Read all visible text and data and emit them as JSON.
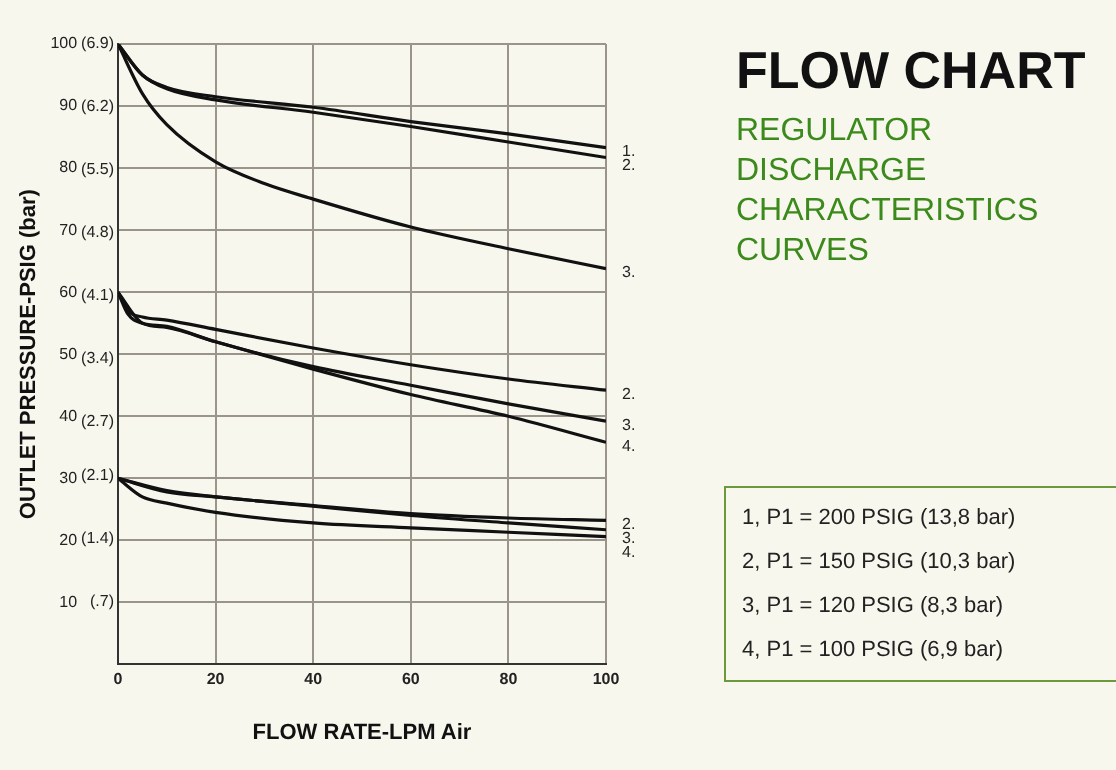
{
  "chart_data": {
    "type": "line",
    "title": "FLOW CHART",
    "subtitle": "REGULATOR DISCHARGE CHARACTERISTICS CURVES",
    "xlabel": "FLOW RATE-LPM Air",
    "ylabel": "OUTLET PRESSURE-PSIG (bar)",
    "annotations": [
      "1, P1 = 200 PSIG (13,8 bar)",
      "2, P1 = 150 PSIG (10,3 bar)",
      "3, P1 = 120 PSIG (8,3 bar)",
      "4, P1 = 100 PSIG (6,9 bar)"
    ],
    "xlim": [
      0,
      100
    ],
    "xticks": [
      0,
      20,
      40,
      60,
      80,
      100
    ],
    "ylim": [
      0,
      100
    ],
    "yticks": [
      10,
      20,
      30,
      40,
      50,
      60,
      70,
      80,
      90,
      100
    ],
    "y2lim": [
      0,
      6.9
    ],
    "y2ticks": [
      {
        "value": 0.7,
        "label": "(.7)"
      },
      {
        "value": 1.4,
        "label": "(1.4)"
      },
      {
        "value": 2.1,
        "label": "(2.1)"
      },
      {
        "value": 2.7,
        "label": "(2.7)"
      },
      {
        "value": 3.4,
        "label": "(3.4)"
      },
      {
        "value": 4.1,
        "label": "(4.1)"
      },
      {
        "value": 4.8,
        "label": "(4.8)"
      },
      {
        "value": 5.5,
        "label": "(5.5)"
      },
      {
        "value": 6.2,
        "label": "(6.2)"
      },
      {
        "value": 6.9,
        "label": "(6.9)"
      }
    ],
    "grid": true,
    "legend": false,
    "marker": "none",
    "line_style": "solid",
    "series": [
      {
        "name": "1.",
        "color": "#111111",
        "x": [
          0,
          5,
          10,
          20,
          40,
          60,
          80,
          100
        ],
        "values": [
          100,
          95,
          93,
          91.5,
          89.8,
          87.5,
          85.5,
          83.3
        ]
      },
      {
        "name": "2.",
        "color": "#111111",
        "x": [
          0,
          5,
          10,
          20,
          40,
          60,
          80,
          100
        ],
        "values": [
          100,
          95,
          92.8,
          91,
          89,
          86.7,
          84.2,
          81.7
        ]
      },
      {
        "name": "3.",
        "color": "#111111",
        "x": [
          0,
          5,
          10,
          20,
          30,
          40,
          60,
          80,
          100
        ],
        "values": [
          100,
          92,
          87,
          81,
          77.5,
          75,
          70.5,
          67,
          63.8
        ]
      },
      {
        "name": "2.",
        "color": "#111111",
        "x": [
          0,
          2,
          5,
          10,
          20,
          40,
          60,
          80,
          100
        ],
        "values": [
          60,
          57,
          56,
          55.5,
          54,
          51,
          48.3,
          46,
          44.2
        ]
      },
      {
        "name": "3.",
        "color": "#111111",
        "x": [
          0,
          2,
          5,
          10,
          20,
          40,
          60,
          80,
          100
        ],
        "values": [
          60,
          56.5,
          55,
          54.5,
          52,
          48,
          45,
          42,
          39.2
        ]
      },
      {
        "name": "4.",
        "color": "#111111",
        "x": [
          0,
          5,
          10,
          20,
          40,
          60,
          80,
          100
        ],
        "values": [
          60,
          55,
          54.3,
          52,
          47.6,
          43.5,
          40,
          35.8
        ]
      },
      {
        "name": "2.",
        "color": "#111111",
        "x": [
          0,
          10,
          20,
          40,
          60,
          80,
          100
        ],
        "values": [
          30,
          28,
          27,
          25.6,
          24.3,
          23.6,
          23.2
        ]
      },
      {
        "name": "3.",
        "color": "#111111",
        "x": [
          0,
          10,
          20,
          40,
          60,
          80,
          100
        ],
        "values": [
          30,
          27.8,
          27,
          25.5,
          24,
          22.8,
          21.7
        ]
      },
      {
        "name": "4.",
        "color": "#111111",
        "x": [
          0,
          5,
          10,
          20,
          40,
          60,
          80,
          100
        ],
        "values": [
          30,
          27,
          26,
          24.5,
          22.8,
          22,
          21.3,
          20.6
        ]
      }
    ]
  }
}
